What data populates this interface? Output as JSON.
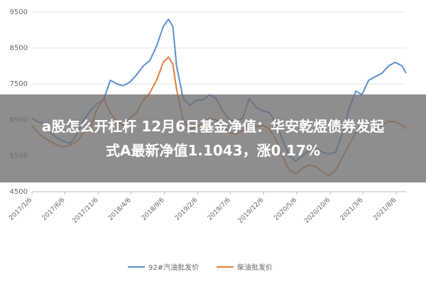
{
  "overlay": {
    "line1": "a股怎么开杠杆 12月6日基金净值：华安乾煜债券发起",
    "line2": "式A最新净值1.1043，涨0.17%"
  },
  "colors": {
    "series1": "#5B8FD0",
    "series2": "#E17F3A",
    "grid": "#e6e6e6",
    "overlay": "#6e6e6e"
  },
  "chart_data": {
    "type": "line",
    "ylim": [
      4500,
      9500
    ],
    "yticks": [
      4500,
      5500,
      6500,
      7500,
      8500,
      9500
    ],
    "xlim": [
      "2017-01-06",
      "2021-09-20"
    ],
    "xtick_labels": [
      "2017/1/6",
      "2017/6/6",
      "2017/11/6",
      "2018/4/6",
      "2018/9/6",
      "2019/2/6",
      "2019/7/6",
      "2019/12/6",
      "2020/5/6",
      "2020/10/6",
      "2021/3/6",
      "2021/8/6"
    ],
    "xtick_dates": [
      "2017-01-06",
      "2017-06-06",
      "2017-11-06",
      "2018-04-06",
      "2018-09-06",
      "2019-02-06",
      "2019-07-06",
      "2019-12-06",
      "2020-05-06",
      "2020-10-06",
      "2021-03-06",
      "2021-08-06"
    ],
    "legend_position": "bottom",
    "series": [
      {
        "name": "92#汽油批发价",
        "color": "#5B8FD0",
        "points": [
          [
            "2017-01-06",
            6550
          ],
          [
            "2017-02-01",
            6450
          ],
          [
            "2017-03-01",
            6400
          ],
          [
            "2017-04-01",
            6150
          ],
          [
            "2017-05-01",
            6000
          ],
          [
            "2017-06-01",
            5900
          ],
          [
            "2017-07-01",
            5850
          ],
          [
            "2017-08-01",
            6100
          ],
          [
            "2017-09-01",
            6500
          ],
          [
            "2017-10-01",
            6750
          ],
          [
            "2017-11-01",
            6950
          ],
          [
            "2017-12-01",
            7050
          ],
          [
            "2018-01-01",
            7600
          ],
          [
            "2018-02-01",
            7500
          ],
          [
            "2018-03-01",
            7450
          ],
          [
            "2018-04-01",
            7550
          ],
          [
            "2018-05-01",
            7750
          ],
          [
            "2018-06-01",
            8000
          ],
          [
            "2018-07-01",
            8150
          ],
          [
            "2018-08-01",
            8550
          ],
          [
            "2018-09-01",
            9100
          ],
          [
            "2018-09-25",
            9300
          ],
          [
            "2018-10-15",
            9100
          ],
          [
            "2018-11-01",
            8000
          ],
          [
            "2018-12-01",
            7100
          ],
          [
            "2019-01-01",
            6900
          ],
          [
            "2019-02-01",
            7050
          ],
          [
            "2019-03-01",
            7050
          ],
          [
            "2019-04-01",
            7200
          ],
          [
            "2019-05-01",
            7100
          ],
          [
            "2019-06-01",
            6750
          ],
          [
            "2019-07-01",
            6500
          ],
          [
            "2019-08-01",
            6450
          ],
          [
            "2019-09-01",
            6550
          ],
          [
            "2019-10-01",
            7100
          ],
          [
            "2019-11-01",
            6850
          ],
          [
            "2019-12-01",
            6750
          ],
          [
            "2020-01-01",
            6700
          ],
          [
            "2020-02-01",
            6400
          ],
          [
            "2020-03-01",
            5950
          ],
          [
            "2020-04-01",
            5500
          ],
          [
            "2020-05-01",
            5350
          ],
          [
            "2020-06-01",
            5500
          ],
          [
            "2020-07-01",
            5650
          ],
          [
            "2020-08-01",
            5700
          ],
          [
            "2020-09-01",
            5600
          ],
          [
            "2020-10-01",
            5550
          ],
          [
            "2020-11-01",
            5600
          ],
          [
            "2020-12-01",
            6100
          ],
          [
            "2021-01-01",
            6800
          ],
          [
            "2021-02-01",
            7300
          ],
          [
            "2021-03-01",
            7200
          ],
          [
            "2021-04-01",
            7600
          ],
          [
            "2021-05-01",
            7700
          ],
          [
            "2021-06-01",
            7800
          ],
          [
            "2021-07-01",
            8000
          ],
          [
            "2021-08-01",
            8100
          ],
          [
            "2021-09-01",
            8000
          ],
          [
            "2021-09-20",
            7800
          ]
        ]
      },
      {
        "name": "柴油批发价",
        "color": "#E17F3A",
        "points": [
          [
            "2017-01-06",
            6350
          ],
          [
            "2017-02-01",
            6150
          ],
          [
            "2017-03-01",
            6000
          ],
          [
            "2017-04-01",
            5900
          ],
          [
            "2017-05-01",
            5800
          ],
          [
            "2017-06-01",
            5750
          ],
          [
            "2017-07-01",
            5800
          ],
          [
            "2017-08-01",
            5900
          ],
          [
            "2017-09-01",
            6150
          ],
          [
            "2017-10-01",
            6250
          ],
          [
            "2017-11-01",
            6800
          ],
          [
            "2017-12-01",
            7100
          ],
          [
            "2018-01-01",
            6700
          ],
          [
            "2018-02-01",
            6450
          ],
          [
            "2018-03-01",
            6350
          ],
          [
            "2018-04-01",
            6550
          ],
          [
            "2018-05-01",
            6700
          ],
          [
            "2018-06-01",
            7050
          ],
          [
            "2018-07-01",
            7250
          ],
          [
            "2018-08-01",
            7600
          ],
          [
            "2018-09-01",
            8100
          ],
          [
            "2018-09-25",
            8250
          ],
          [
            "2018-10-15",
            8050
          ],
          [
            "2018-11-01",
            7350
          ],
          [
            "2018-12-01",
            6500
          ],
          [
            "2019-01-01",
            6250
          ],
          [
            "2019-02-01",
            6300
          ],
          [
            "2019-03-01",
            6400
          ],
          [
            "2019-04-01",
            6550
          ],
          [
            "2019-05-01",
            6500
          ],
          [
            "2019-06-01",
            6350
          ],
          [
            "2019-07-01",
            6150
          ],
          [
            "2019-08-01",
            6100
          ],
          [
            "2019-09-01",
            6200
          ],
          [
            "2019-10-01",
            6450
          ],
          [
            "2019-11-01",
            6300
          ],
          [
            "2019-12-01",
            6350
          ],
          [
            "2020-01-01",
            6250
          ],
          [
            "2020-02-01",
            5950
          ],
          [
            "2020-03-01",
            5500
          ],
          [
            "2020-04-01",
            5100
          ],
          [
            "2020-05-01",
            5000
          ],
          [
            "2020-06-01",
            5150
          ],
          [
            "2020-07-01",
            5250
          ],
          [
            "2020-08-01",
            5200
          ],
          [
            "2020-09-01",
            5050
          ],
          [
            "2020-10-01",
            4950
          ],
          [
            "2020-11-01",
            5100
          ],
          [
            "2020-12-01",
            5450
          ],
          [
            "2021-01-01",
            5800
          ],
          [
            "2021-02-01",
            6150
          ],
          [
            "2021-03-01",
            6200
          ],
          [
            "2021-04-01",
            6150
          ],
          [
            "2021-05-01",
            6250
          ],
          [
            "2021-06-01",
            6350
          ],
          [
            "2021-07-01",
            6450
          ],
          [
            "2021-08-01",
            6450
          ],
          [
            "2021-09-01",
            6350
          ],
          [
            "2021-09-20",
            6250
          ]
        ]
      }
    ]
  }
}
